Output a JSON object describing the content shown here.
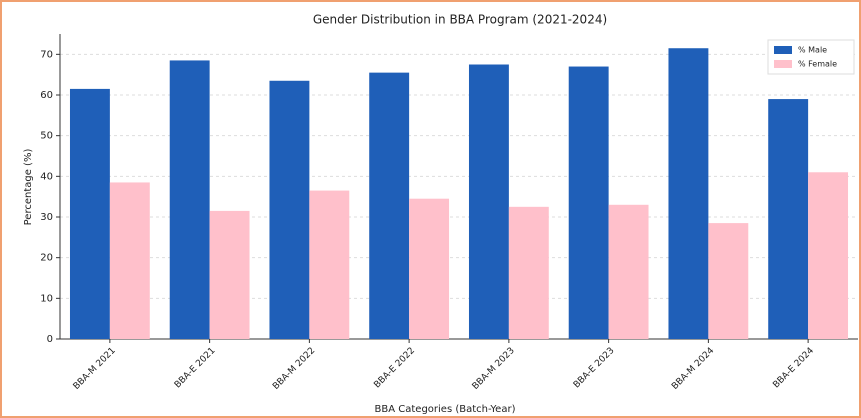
{
  "chart_data": {
    "type": "bar",
    "title": "Gender Distribution in BBA Program (2021-2024)",
    "x_label": "BBA Categories (Batch-Year)",
    "y_label": "Percentage (%)",
    "categories": [
      "BBA-M 2021",
      "BBA-E 2021",
      "BBA-M 2022",
      "BBA-E 2022",
      "BBA-M 2023",
      "BBA-E 2023",
      "BBA-M 2024",
      "BBA-E 2024"
    ],
    "series": [
      {
        "name": "% Male",
        "color": "#1f5fb8",
        "values": [
          61.5,
          68.5,
          63.5,
          65.5,
          67.5,
          67,
          71.5,
          59
        ]
      },
      {
        "name": "% Female",
        "color": "#ffc0cb",
        "values": [
          38.5,
          31.5,
          36.5,
          34.5,
          32.5,
          33,
          28.5,
          41
        ]
      }
    ],
    "ylim": [
      0,
      75
    ],
    "yticks": [
      0,
      10,
      20,
      30,
      40,
      50,
      60,
      70
    ],
    "grid": true,
    "legend": "upper right"
  }
}
